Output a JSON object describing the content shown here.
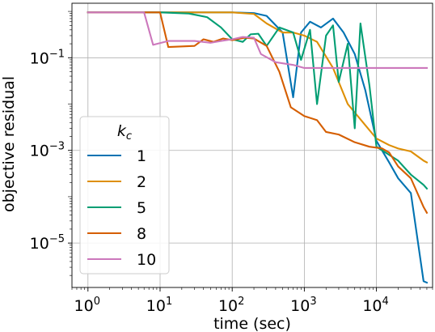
{
  "chart_data": {
    "type": "line",
    "xlabel": "time (sec)",
    "ylabel": "objective residual",
    "xscale": "log",
    "yscale": "log",
    "xlim": [
      0.6,
      60000
    ],
    "ylim": [
      1.1e-06,
      1.5
    ],
    "grid": true,
    "x_ticks": [
      {
        "value": 1,
        "base": "10",
        "exp": "0"
      },
      {
        "value": 10,
        "base": "10",
        "exp": "1"
      },
      {
        "value": 100,
        "base": "10",
        "exp": "2"
      },
      {
        "value": 1000,
        "base": "10",
        "exp": "3"
      },
      {
        "value": 10000,
        "base": "10",
        "exp": "4"
      }
    ],
    "y_ticks": [
      {
        "value": 0.1,
        "base": "10",
        "exp": "−1"
      },
      {
        "value": 0.001,
        "base": "10",
        "exp": "−3"
      },
      {
        "value": 1e-05,
        "base": "10",
        "exp": "−5"
      }
    ],
    "legend": {
      "title_main": "k",
      "title_sub": "c",
      "placement": "lower-left"
    },
    "series": [
      {
        "name": "1",
        "color": "#0173b2",
        "points": [
          [
            1,
            0.95
          ],
          [
            10,
            0.95
          ],
          [
            100,
            0.95
          ],
          [
            200,
            0.92
          ],
          [
            300,
            0.8
          ],
          [
            500,
            0.35
          ],
          [
            700,
            0.014
          ],
          [
            900,
            0.35
          ],
          [
            1200,
            0.6
          ],
          [
            1700,
            0.45
          ],
          [
            2500,
            0.7
          ],
          [
            3500,
            0.35
          ],
          [
            5000,
            0.12
          ],
          [
            7000,
            0.02
          ],
          [
            10000,
            0.0016
          ],
          [
            15000,
            0.00055
          ],
          [
            20000,
            0.00025
          ],
          [
            30000,
            0.00012
          ],
          [
            45000,
            1.5e-06
          ],
          [
            50000,
            1.4e-06
          ]
        ]
      },
      {
        "name": "2",
        "color": "#de8f05",
        "points": [
          [
            1,
            0.95
          ],
          [
            10,
            0.95
          ],
          [
            100,
            0.95
          ],
          [
            200,
            0.88
          ],
          [
            300,
            0.55
          ],
          [
            500,
            0.35
          ],
          [
            700,
            0.35
          ],
          [
            1000,
            0.3
          ],
          [
            1500,
            0.22
          ],
          [
            2500,
            0.06
          ],
          [
            4000,
            0.01
          ],
          [
            7000,
            0.0035
          ],
          [
            10000,
            0.0018
          ],
          [
            15000,
            0.0013
          ],
          [
            20000,
            0.0011
          ],
          [
            30000,
            0.00095
          ],
          [
            45000,
            0.0006
          ],
          [
            50000,
            0.00055
          ]
        ]
      },
      {
        "name": "5",
        "color": "#029e73",
        "points": [
          [
            1,
            0.95
          ],
          [
            10,
            0.95
          ],
          [
            25,
            0.9
          ],
          [
            45,
            0.75
          ],
          [
            70,
            0.45
          ],
          [
            100,
            0.25
          ],
          [
            140,
            0.22
          ],
          [
            180,
            0.32
          ],
          [
            230,
            0.33
          ],
          [
            300,
            0.18
          ],
          [
            450,
            0.45
          ],
          [
            700,
            0.35
          ],
          [
            900,
            0.09
          ],
          [
            1200,
            0.4
          ],
          [
            1500,
            0.01
          ],
          [
            2000,
            0.3
          ],
          [
            2500,
            0.5
          ],
          [
            3000,
            0.03
          ],
          [
            4000,
            0.2
          ],
          [
            5000,
            0.003
          ],
          [
            6000,
            0.55
          ],
          [
            8000,
            0.025
          ],
          [
            10000,
            0.0012
          ],
          [
            15000,
            0.0008
          ],
          [
            20000,
            0.0006
          ],
          [
            30000,
            0.0003
          ],
          [
            45000,
            0.00018
          ],
          [
            50000,
            0.00015
          ]
        ]
      },
      {
        "name": "8",
        "color": "#d55e00",
        "points": [
          [
            1,
            0.95
          ],
          [
            10,
            0.95
          ],
          [
            13,
            0.17
          ],
          [
            30,
            0.18
          ],
          [
            40,
            0.25
          ],
          [
            55,
            0.22
          ],
          [
            75,
            0.26
          ],
          [
            100,
            0.24
          ],
          [
            150,
            0.27
          ],
          [
            200,
            0.26
          ],
          [
            300,
            0.18
          ],
          [
            450,
            0.05
          ],
          [
            650,
            0.0085
          ],
          [
            1000,
            0.0055
          ],
          [
            1500,
            0.0045
          ],
          [
            2000,
            0.0025
          ],
          [
            3000,
            0.0022
          ],
          [
            5000,
            0.0015
          ],
          [
            8000,
            0.0012
          ],
          [
            12000,
            0.0011
          ],
          [
            15000,
            0.0009
          ],
          [
            20000,
            0.00045
          ],
          [
            30000,
            0.00025
          ],
          [
            45000,
            6e-05
          ],
          [
            50000,
            4.5e-05
          ]
        ]
      },
      {
        "name": "10",
        "color": "#cc78bc",
        "points": [
          [
            1,
            0.95
          ],
          [
            6,
            0.95
          ],
          [
            8,
            0.19
          ],
          [
            13,
            0.23
          ],
          [
            30,
            0.23
          ],
          [
            50,
            0.21
          ],
          [
            70,
            0.23
          ],
          [
            100,
            0.25
          ],
          [
            140,
            0.28
          ],
          [
            200,
            0.27
          ],
          [
            250,
            0.12
          ],
          [
            400,
            0.08
          ],
          [
            700,
            0.07
          ],
          [
            1000,
            0.06
          ],
          [
            1500,
            0.06
          ],
          [
            3000,
            0.06
          ],
          [
            10000,
            0.06
          ],
          [
            50000,
            0.06
          ]
        ]
      }
    ]
  }
}
